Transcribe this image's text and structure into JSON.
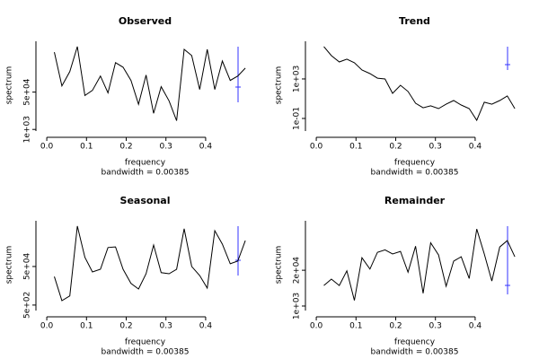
{
  "chart_data": [
    {
      "type": "line",
      "title": "Observed",
      "xlabel": "frequency",
      "subtitle": "bandwidth = 0.00385",
      "ylabel": "spectrum",
      "log_scale": true,
      "color": "#000000",
      "x": [
        0.019,
        0.038,
        0.058,
        0.077,
        0.096,
        0.115,
        0.135,
        0.154,
        0.173,
        0.192,
        0.212,
        0.231,
        0.25,
        0.269,
        0.288,
        0.308,
        0.327,
        0.346,
        0.365,
        0.385,
        0.404,
        0.423,
        0.442,
        0.462,
        0.481,
        0.5
      ],
      "values": [
        3300000,
        96000,
        430000,
        5900000,
        35000,
        60000,
        270000,
        46000,
        1100000,
        680000,
        170000,
        14000,
        300000,
        5400,
        88000,
        20000,
        2500,
        4400000,
        2300000,
        66000,
        4400000,
        66000,
        1300000,
        170000,
        270000,
        620000
      ],
      "xlim": [
        -0.016,
        0.511
      ],
      "xticks": [
        {
          "value": 0,
          "label": "0.0"
        },
        0.1,
        0.2,
        0.3,
        0.4
      ],
      "ylim": [
        700,
        15000000
      ],
      "yticks": [
        {
          "value": 1000,
          "label": "1e+03"
        },
        {
          "value": 50000,
          "label": "5e+04"
        }
      ]
    },
    {
      "type": "line",
      "title": "Trend",
      "xlabel": "frequency",
      "subtitle": "bandwidth = 0.00385",
      "ylabel": "spectrum",
      "log_scale": true,
      "color": "#000000",
      "x": [
        0.019,
        0.038,
        0.058,
        0.077,
        0.096,
        0.115,
        0.135,
        0.154,
        0.173,
        0.192,
        0.212,
        0.231,
        0.25,
        0.269,
        0.288,
        0.308,
        0.327,
        0.346,
        0.365,
        0.385,
        0.404,
        0.423,
        0.442,
        0.462,
        0.481,
        0.5
      ],
      "values": [
        1900000,
        230000,
        53000,
        100000,
        44000,
        8100,
        3500,
        1200,
        1000,
        35,
        230,
        54,
        3.5,
        1.2,
        1.9,
        1,
        2.8,
        6.6,
        2.3,
        1,
        0.066,
        4.4,
        2.8,
        6.6,
        19,
        1
      ],
      "xlim": [
        -0.016,
        0.511
      ],
      "xticks": [
        {
          "value": 0,
          "label": "0.0"
        },
        0.1,
        0.2,
        0.3,
        0.4
      ],
      "ylim": [
        0.0035,
        15000000
      ],
      "yticks": [
        {
          "value": 0.1,
          "label": "1e-01"
        },
        {
          "value": 1000,
          "label": "1e+03"
        }
      ]
    },
    {
      "type": "line",
      "title": "Seasonal",
      "xlabel": "frequency",
      "subtitle": "bandwidth = 0.00385",
      "ylabel": "spectrum",
      "log_scale": true,
      "color": "#000000",
      "x": [
        0.019,
        0.038,
        0.058,
        0.077,
        0.096,
        0.115,
        0.135,
        0.154,
        0.173,
        0.192,
        0.212,
        0.231,
        0.25,
        0.269,
        0.288,
        0.308,
        0.327,
        0.346,
        0.365,
        0.385,
        0.404,
        0.423,
        0.442,
        0.462,
        0.481,
        0.5
      ],
      "values": [
        15000,
        850,
        1500,
        6200000,
        150000,
        26000,
        36000,
        480000,
        520000,
        36000,
        6600,
        3400,
        21000,
        650000,
        24000,
        21000,
        36000,
        4500000,
        50000,
        17000,
        3800,
        3600000,
        720000,
        69000,
        95000,
        1100000
      ],
      "xlim": [
        -0.016,
        0.511
      ],
      "xticks": [
        {
          "value": 0,
          "label": "0.0"
        },
        0.1,
        0.2,
        0.3,
        0.4
      ],
      "ylim": [
        210,
        18000000
      ],
      "yticks": [
        {
          "value": 500,
          "label": "5e+02"
        },
        {
          "value": 50000,
          "label": "5e+04"
        }
      ]
    },
    {
      "type": "line",
      "title": "Remainder",
      "xlabel": "frequency",
      "subtitle": "bandwidth = 0.00385",
      "ylabel": "spectrum",
      "log_scale": true,
      "color": "#000000",
      "x": [
        0.019,
        0.038,
        0.058,
        0.077,
        0.096,
        0.115,
        0.135,
        0.154,
        0.173,
        0.192,
        0.212,
        0.231,
        0.25,
        0.269,
        0.288,
        0.308,
        0.327,
        0.346,
        0.365,
        0.385,
        0.404,
        0.423,
        0.442,
        0.462,
        0.481,
        0.5
      ],
      "values": [
        5600,
        9500,
        5600,
        19000,
        1600,
        57000,
        22000,
        90000,
        110000,
        78000,
        97000,
        17000,
        150000,
        2900,
        200000,
        72000,
        5200,
        43000,
        62000,
        10000,
        630000,
        78000,
        8100,
        140000,
        240000,
        62000
      ],
      "xlim": [
        -0.016,
        0.511
      ],
      "xticks": [
        {
          "value": 0,
          "label": "0.0"
        },
        0.1,
        0.2,
        0.3,
        0.4
      ],
      "ylim": [
        590,
        1700000
      ],
      "yticks": [
        {
          "value": 1000,
          "label": "1e+03"
        },
        {
          "value": 20000,
          "label": "2e+04"
        }
      ]
    }
  ]
}
